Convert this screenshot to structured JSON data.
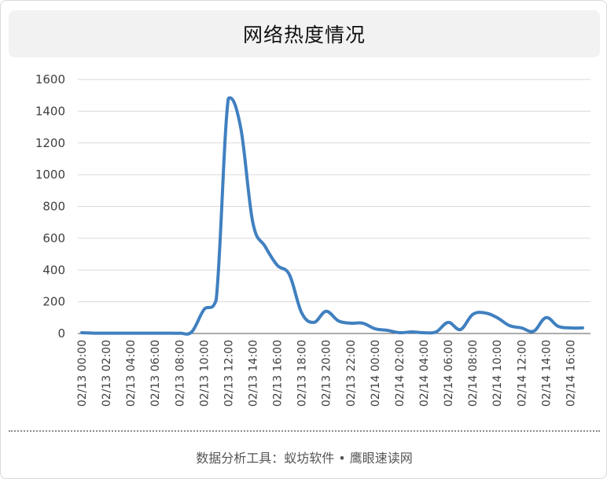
{
  "title": "网络热度情况",
  "footer": "数据分析工具：蚁坊软件 • 鹰眼速读网",
  "colors": {
    "line": "#4080c0",
    "grid": "#d9d9d9",
    "axis": "#595959",
    "title_bg": "#f2f2f2"
  },
  "chart_data": {
    "type": "line",
    "title": "网络热度情况",
    "xlabel": "",
    "ylabel": "",
    "ylim": [
      0,
      1600
    ],
    "yticks": [
      0,
      200,
      400,
      600,
      800,
      1000,
      1200,
      1400,
      1600
    ],
    "grid": true,
    "legend": "none",
    "x_tick_labels": [
      "02/13 00:00",
      "02/13 02:00",
      "02/13 04:00",
      "02/13 06:00",
      "02/13 08:00",
      "02/13 10:00",
      "02/13 12:00",
      "02/13 14:00",
      "02/13 16:00",
      "02/13 18:00",
      "02/13 20:00",
      "02/13 22:00",
      "02/14 00:00",
      "02/14 02:00",
      "02/14 04:00",
      "02/14 06:00",
      "02/14 08:00",
      "02/14 10:00",
      "02/14 12:00",
      "02/14 14:00",
      "02/14 16:00"
    ],
    "x": [
      "02/13 00:00",
      "02/13 01:00",
      "02/13 02:00",
      "02/13 03:00",
      "02/13 04:00",
      "02/13 05:00",
      "02/13 06:00",
      "02/13 07:00",
      "02/13 08:00",
      "02/13 09:00",
      "02/13 10:00",
      "02/13 11:00",
      "02/13 12:00",
      "02/13 13:00",
      "02/13 14:00",
      "02/13 15:00",
      "02/13 16:00",
      "02/13 17:00",
      "02/13 18:00",
      "02/13 19:00",
      "02/13 20:00",
      "02/13 21:00",
      "02/13 22:00",
      "02/13 23:00",
      "02/14 00:00",
      "02/14 01:00",
      "02/14 02:00",
      "02/14 03:00",
      "02/14 04:00",
      "02/14 05:00",
      "02/14 06:00",
      "02/14 07:00",
      "02/14 08:00",
      "02/14 09:00",
      "02/14 10:00",
      "02/14 11:00",
      "02/14 12:00",
      "02/14 13:00",
      "02/14 14:00",
      "02/14 15:00",
      "02/14 16:00",
      "02/14 17:00"
    ],
    "series": [
      {
        "values": [
          5,
          2,
          2,
          2,
          2,
          2,
          2,
          2,
          2,
          10,
          150,
          210,
          1480,
          1300,
          700,
          550,
          430,
          370,
          130,
          70,
          140,
          80,
          65,
          65,
          30,
          20,
          5,
          10,
          5,
          10,
          70,
          25,
          120,
          130,
          100,
          50,
          35,
          15,
          100,
          45,
          35,
          35
        ]
      }
    ]
  }
}
